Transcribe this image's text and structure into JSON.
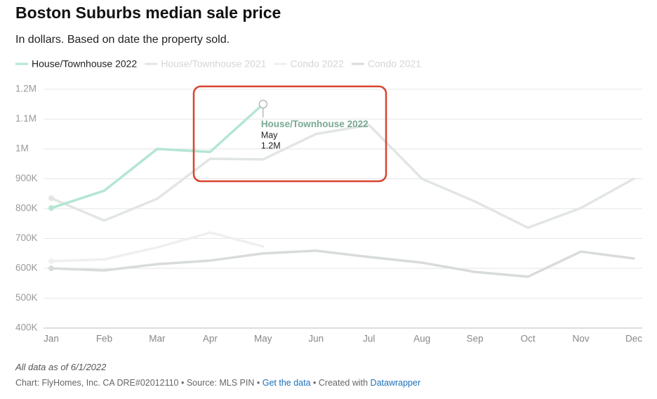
{
  "chart_data": {
    "type": "line",
    "title": "Boston Suburbs median sale price",
    "subtitle": "In dollars. Based on date the property sold.",
    "categories": [
      "Jan",
      "Feb",
      "Mar",
      "Apr",
      "May",
      "Jun",
      "Jul",
      "Aug",
      "Sep",
      "Oct",
      "Nov",
      "Dec"
    ],
    "series": [
      {
        "name": "House/Townhouse 2022",
        "color": "#b3e6d2",
        "values": [
          802000,
          860000,
          1000000,
          990000,
          1150000,
          null,
          null,
          null,
          null,
          null,
          null,
          null
        ],
        "value_labels": [
          null,
          null,
          null,
          null,
          "1.2M",
          null,
          null,
          null,
          null,
          null,
          null,
          null
        ]
      },
      {
        "name": "House/Townhouse 2021",
        "color": "#e2e6e3",
        "values": [
          835000,
          760000,
          833000,
          967000,
          965000,
          1050000,
          1080000,
          900000,
          824000,
          736000,
          802000,
          900000
        ]
      },
      {
        "name": "Condo 2022",
        "color": "#eef0ee",
        "values": [
          624000,
          630000,
          670000,
          720000,
          673000,
          null,
          null,
          null,
          null,
          null,
          null,
          null
        ]
      },
      {
        "name": "Condo 2021",
        "color": "#d8dcd9",
        "values": [
          600000,
          593000,
          614000,
          626000,
          650000,
          659000,
          638000,
          619000,
          588000,
          572000,
          656000,
          633000
        ]
      }
    ],
    "ylim": [
      400000,
      1200000
    ],
    "yticks": [
      {
        "value": 400000,
        "label": "400K"
      },
      {
        "value": 500000,
        "label": "500K"
      },
      {
        "value": 600000,
        "label": "600K"
      },
      {
        "value": 700000,
        "label": "700K"
      },
      {
        "value": 800000,
        "label": "800K"
      },
      {
        "value": 900000,
        "label": "900K"
      },
      {
        "value": 1000000,
        "label": "1M"
      },
      {
        "value": 1100000,
        "label": "1.1M"
      },
      {
        "value": 1200000,
        "label": "1.2M"
      }
    ],
    "grid": true
  },
  "footer": {
    "note": "All data as of 6/1/2022",
    "credit": "Chart: FlyHomes, Inc. CA DRE#02012110 • Source: MLS PIN •",
    "link1": "Get the data",
    "credit2": "• Created with",
    "link2": "Datawrapper"
  }
}
